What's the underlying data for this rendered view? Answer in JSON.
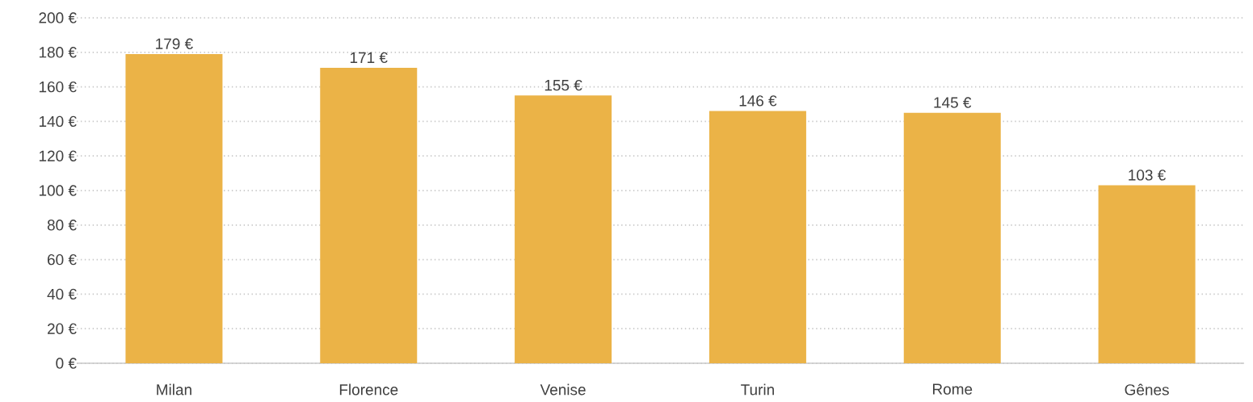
{
  "chart_data": {
    "type": "bar",
    "categories": [
      "Milan",
      "Florence",
      "Venise",
      "Turin",
      "Rome",
      "Gênes"
    ],
    "values": [
      179,
      171,
      155,
      146,
      145,
      103
    ],
    "value_labels": [
      "179 €",
      "171 €",
      "155 €",
      "146 €",
      "145 €",
      "103 €"
    ],
    "color": "#ebb347",
    "ylim": [
      0,
      200
    ],
    "yticks": [
      {
        "value": 0,
        "label": "0 €"
      },
      {
        "value": 20,
        "label": "20 €"
      },
      {
        "value": 40,
        "label": "40 €"
      },
      {
        "value": 60,
        "label": "60 €"
      },
      {
        "value": 80,
        "label": "80 €"
      },
      {
        "value": 100,
        "label": "100 €"
      },
      {
        "value": 120,
        "label": "120 €"
      },
      {
        "value": 140,
        "label": "140 €"
      },
      {
        "value": 160,
        "label": "160 €"
      },
      {
        "value": 180,
        "label": "180 €"
      },
      {
        "value": 200,
        "label": "200 €"
      }
    ],
    "grid": "y"
  }
}
